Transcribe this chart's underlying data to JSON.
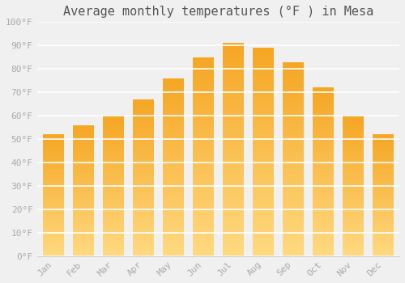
{
  "title": "Average monthly temperatures (°F ) in Mesa",
  "months": [
    "Jan",
    "Feb",
    "Mar",
    "Apr",
    "May",
    "Jun",
    "Jul",
    "Aug",
    "Sep",
    "Oct",
    "Nov",
    "Dec"
  ],
  "values": [
    52,
    56,
    60,
    67,
    76,
    85,
    91,
    89,
    83,
    72,
    60,
    52
  ],
  "bar_color_top": "#F5A623",
  "bar_color_bottom": "#FFD980",
  "ylim": [
    0,
    100
  ],
  "yticks": [
    0,
    10,
    20,
    30,
    40,
    50,
    60,
    70,
    80,
    90,
    100
  ],
  "ytick_labels": [
    "0°F",
    "10°F",
    "20°F",
    "30°F",
    "40°F",
    "50°F",
    "60°F",
    "70°F",
    "80°F",
    "90°F",
    "100°F"
  ],
  "background_color": "#f0f0f0",
  "grid_color": "#ffffff",
  "title_fontsize": 11,
  "tick_fontsize": 8,
  "tick_color": "#aaaaaa",
  "font_family": "monospace",
  "bar_width": 0.7
}
